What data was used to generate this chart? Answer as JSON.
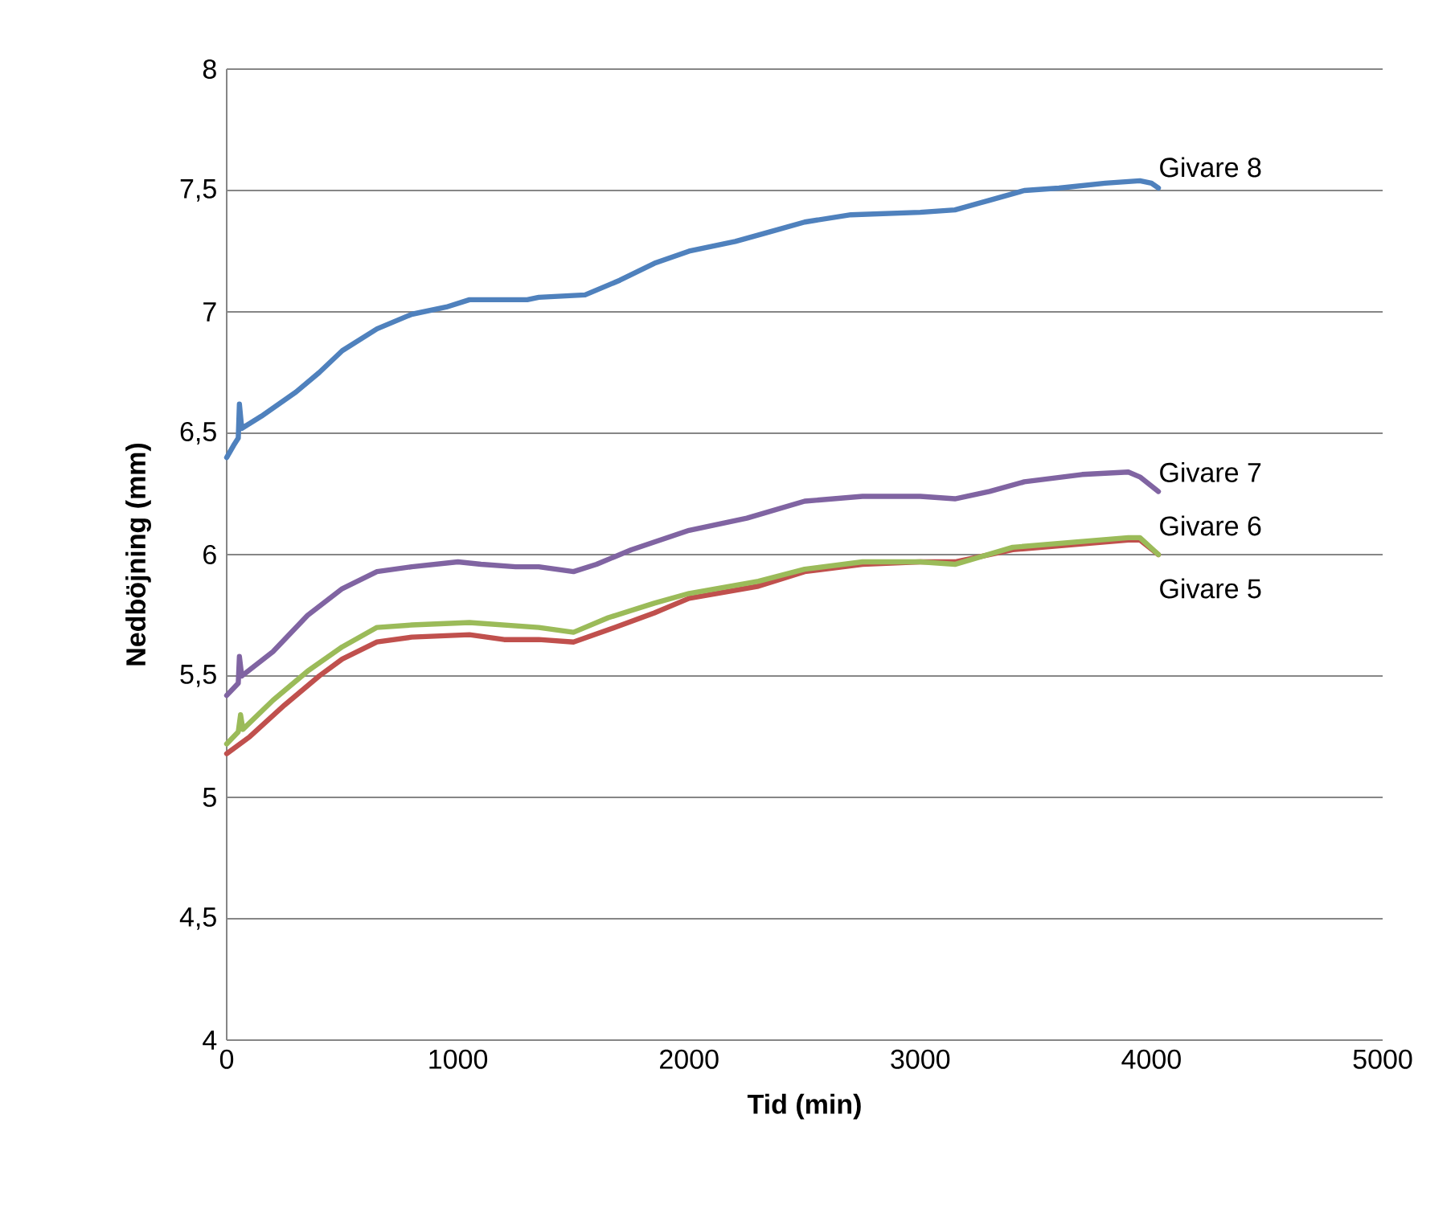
{
  "chart_data": {
    "type": "line",
    "xlabel": "Tid (min)",
    "ylabel": "Nedböjning (mm)",
    "xlim": [
      0,
      5000
    ],
    "xticks": [
      0,
      1000,
      2000,
      3000,
      4000,
      5000
    ],
    "ylim": [
      4,
      8
    ],
    "yticks": [
      4,
      {
        "value": 4.5,
        "label": "4,5"
      },
      5,
      {
        "value": 5.5,
        "label": "5,5"
      },
      6,
      {
        "value": 6.5,
        "label": "6,5"
      },
      7,
      {
        "value": 7.5,
        "label": "7,5"
      },
      8
    ],
    "grid": "y",
    "legend": false,
    "marker": "none",
    "line_style": "solid",
    "series": [
      {
        "name": "Givare 5",
        "color": "#c0504d",
        "x": [
          0,
          100,
          250,
          400,
          500,
          650,
          800,
          1050,
          1200,
          1350,
          1500,
          1650,
          1850,
          2000,
          2300,
          2500,
          2750,
          3000,
          3150,
          3400,
          3650,
          3900,
          3950,
          4030
        ],
        "values": [
          5.18,
          5.25,
          5.38,
          5.5,
          5.57,
          5.64,
          5.66,
          5.67,
          5.65,
          5.65,
          5.64,
          5.69,
          5.76,
          5.82,
          5.87,
          5.93,
          5.96,
          5.97,
          5.97,
          6.02,
          6.04,
          6.06,
          6.06,
          6.0
        ]
      },
      {
        "name": "Givare 6",
        "color": "#9bbb59",
        "x": [
          0,
          50,
          60,
          70,
          200,
          350,
          500,
          650,
          800,
          1050,
          1200,
          1350,
          1500,
          1650,
          1850,
          2000,
          2300,
          2500,
          2750,
          3000,
          3150,
          3400,
          3650,
          3900,
          3950,
          4030
        ],
        "values": [
          5.22,
          5.27,
          5.34,
          5.28,
          5.4,
          5.52,
          5.62,
          5.7,
          5.71,
          5.72,
          5.71,
          5.7,
          5.68,
          5.74,
          5.8,
          5.84,
          5.89,
          5.94,
          5.97,
          5.97,
          5.96,
          6.03,
          6.05,
          6.07,
          6.07,
          6.0
        ]
      },
      {
        "name": "Givare 7",
        "color": "#8064a2",
        "x": [
          0,
          50,
          55,
          65,
          200,
          350,
          500,
          650,
          800,
          1000,
          1100,
          1250,
          1350,
          1500,
          1600,
          1750,
          2000,
          2250,
          2500,
          2750,
          3000,
          3150,
          3300,
          3450,
          3700,
          3900,
          3950,
          4030
        ],
        "values": [
          5.42,
          5.47,
          5.58,
          5.5,
          5.6,
          5.75,
          5.86,
          5.93,
          5.95,
          5.97,
          5.96,
          5.95,
          5.95,
          5.93,
          5.96,
          6.02,
          6.1,
          6.15,
          6.22,
          6.24,
          6.24,
          6.23,
          6.26,
          6.3,
          6.33,
          6.34,
          6.32,
          6.26
        ]
      },
      {
        "name": "Givare 8",
        "color": "#4f81bd",
        "x": [
          0,
          30,
          50,
          55,
          65,
          150,
          300,
          400,
          500,
          650,
          800,
          950,
          1050,
          1300,
          1350,
          1550,
          1700,
          1850,
          2000,
          2200,
          2350,
          2500,
          2700,
          3000,
          3150,
          3300,
          3450,
          3600,
          3800,
          3950,
          4000,
          4030
        ],
        "values": [
          6.4,
          6.45,
          6.48,
          6.62,
          6.52,
          6.57,
          6.67,
          6.75,
          6.84,
          6.93,
          6.99,
          7.02,
          7.05,
          7.05,
          7.06,
          7.07,
          7.13,
          7.2,
          7.25,
          7.29,
          7.33,
          7.37,
          7.4,
          7.41,
          7.42,
          7.46,
          7.5,
          7.51,
          7.53,
          7.54,
          7.53,
          7.51
        ]
      }
    ]
  }
}
